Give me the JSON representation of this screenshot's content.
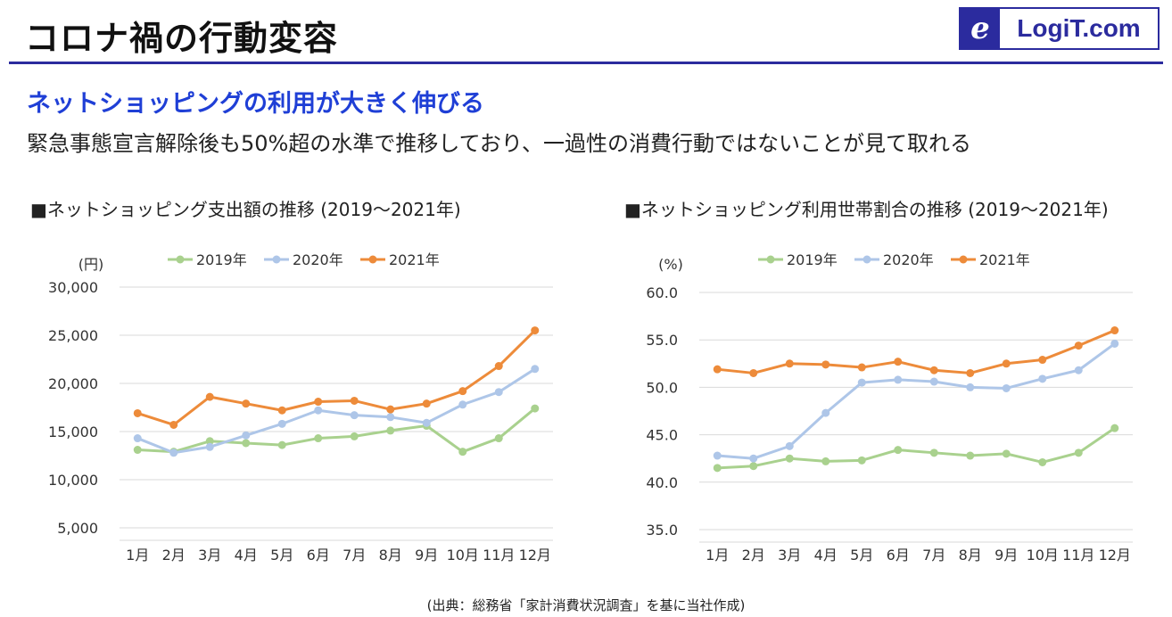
{
  "page": {
    "title": "コロナ禍の行動変容",
    "logo": {
      "mark": "e",
      "text": "LogiT.com",
      "color": "#2b2b9e"
    },
    "headline": "ネットショッピングの利用が大きく伸びる",
    "subline": "緊急事態宣言解除後も50%超の水準で推移しており、一過性の消費行動ではないことが見て取れる",
    "source": "(出典：総務省「家計消費状況調査」を基に当社作成)"
  },
  "colors": {
    "2019": "#a9d18e",
    "2020": "#aec6e8",
    "2021": "#ed8b3a",
    "headline": "#1f3fd6"
  },
  "chart_data": [
    {
      "type": "line",
      "heading": "■ネットショッピング支出額の推移 (2019～2021年)",
      "unit": "(円)",
      "categories": [
        "1月",
        "2月",
        "3月",
        "4月",
        "5月",
        "6月",
        "7月",
        "8月",
        "9月",
        "10月",
        "11月",
        "12月"
      ],
      "yticks": [
        "5,000",
        "10,000",
        "15,000",
        "20,000",
        "25,000",
        "30,000"
      ],
      "ylim": [
        5000,
        30000
      ],
      "legend": "top",
      "grid": true,
      "series": [
        {
          "name": "2019年",
          "values": [
            13100,
            12900,
            14000,
            13800,
            13600,
            14300,
            14500,
            15100,
            15600,
            12900,
            14300,
            17400
          ]
        },
        {
          "name": "2020年",
          "values": [
            14300,
            12800,
            13400,
            14600,
            15800,
            17200,
            16700,
            16500,
            15900,
            17800,
            19100,
            21500
          ]
        },
        {
          "name": "2021年",
          "values": [
            16900,
            15700,
            18600,
            17900,
            17200,
            18100,
            18200,
            17300,
            17900,
            19200,
            21800,
            25500
          ]
        }
      ]
    },
    {
      "type": "line",
      "heading": "■ネットショッピング利用世帯割合の推移 (2019～2021年)",
      "unit": "(%)",
      "categories": [
        "1月",
        "2月",
        "3月",
        "4月",
        "5月",
        "6月",
        "7月",
        "8月",
        "9月",
        "10月",
        "11月",
        "12月"
      ],
      "yticks": [
        "35.0",
        "40.0",
        "45.0",
        "50.0",
        "55.0",
        "60.0"
      ],
      "ylim": [
        35,
        60
      ],
      "legend": "top",
      "grid": true,
      "series": [
        {
          "name": "2019年",
          "values": [
            41.5,
            41.7,
            42.5,
            42.2,
            42.3,
            43.4,
            43.1,
            42.8,
            43.0,
            42.1,
            43.1,
            45.7
          ]
        },
        {
          "name": "2020年",
          "values": [
            42.8,
            42.5,
            43.8,
            47.3,
            50.5,
            50.8,
            50.6,
            50.0,
            49.9,
            50.9,
            51.8,
            54.6
          ]
        },
        {
          "name": "2021年",
          "values": [
            51.9,
            51.5,
            52.5,
            52.4,
            52.1,
            52.7,
            51.8,
            51.5,
            52.5,
            52.9,
            54.4,
            56.0
          ]
        }
      ]
    }
  ]
}
